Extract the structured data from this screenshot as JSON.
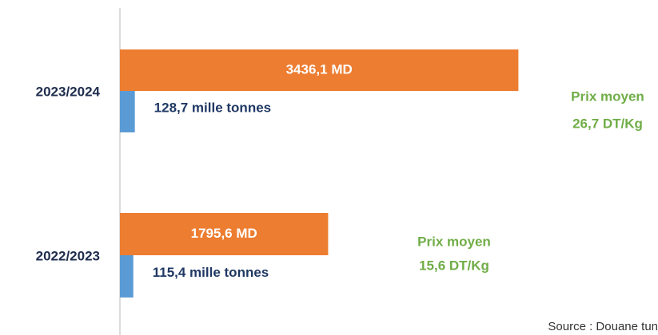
{
  "chart_data": {
    "type": "bar",
    "orientation": "horizontal",
    "categories": [
      "2023/2024",
      "2022/2023"
    ],
    "series": [
      {
        "color": "#ed7d31",
        "values": [
          3436.1,
          1795.6
        ],
        "value_labels": [
          "3436,1 MD",
          "1795,6 MD"
        ]
      },
      {
        "color": "#5b9bd5",
        "values": [
          128.7,
          115.4
        ],
        "value_labels": [
          "128,7 mille tonnes",
          "115,4 mille tonnes"
        ]
      }
    ],
    "xlim": [
      0,
      4640
    ],
    "annotations": [
      [
        "Prix moyen",
        "26,7 DT/Kg"
      ],
      [
        "Prix moyen",
        "15,6 DT/Kg"
      ]
    ],
    "source": "Source : Douane tun"
  }
}
